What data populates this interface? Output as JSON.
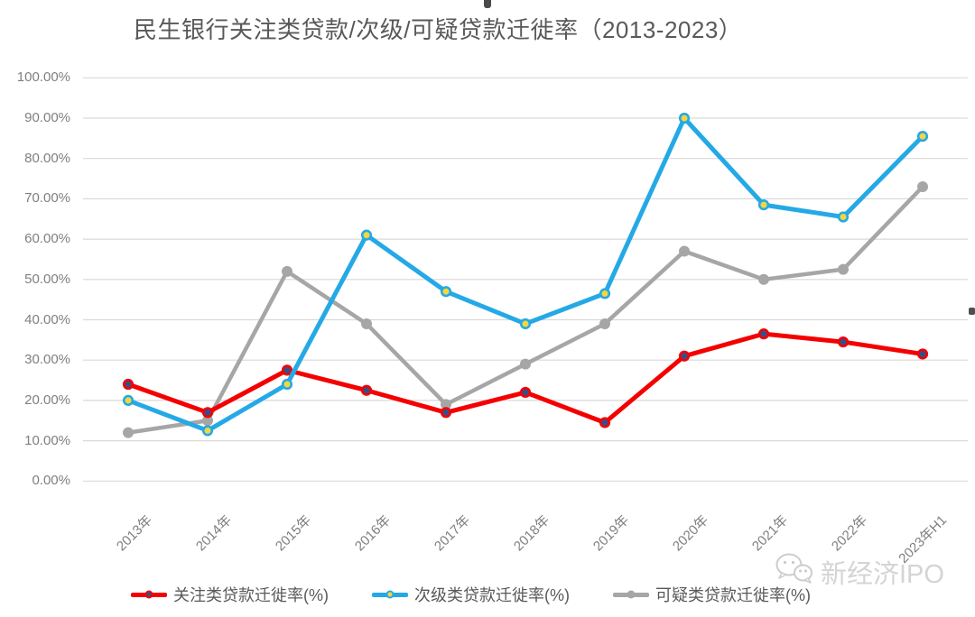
{
  "chart_data": {
    "type": "line",
    "title": "民生银行关注类贷款/次级/可疑贷款迁徙率（2013-2023）",
    "categories": [
      "2013年",
      "2014年",
      "2015年",
      "2016年",
      "2017年",
      "2018年",
      "2019年",
      "2020年",
      "2021年",
      "2022年",
      "2023年H1"
    ],
    "series": [
      {
        "name": "关注类贷款迁徙率(%)",
        "color": "#f40000",
        "marker_fill": "#34508c",
        "values": [
          24,
          17,
          27.5,
          22.5,
          17,
          22,
          14.5,
          31,
          36.5,
          34.5,
          31.5
        ]
      },
      {
        "name": "次级类贷款迁徙率(%)",
        "color": "#25a9e6",
        "marker_fill": "#f5d63d",
        "values": [
          20,
          12.5,
          24,
          61,
          47,
          39,
          46.5,
          90,
          68.5,
          65.5,
          85.5
        ]
      },
      {
        "name": "可疑类贷款迁徙率(%)",
        "color": "#a6a6a6",
        "marker_fill": "#a6a6a6",
        "values": [
          12,
          15,
          52,
          39,
          19,
          29,
          39,
          57,
          50,
          52.5,
          73
        ]
      }
    ],
    "y_ticks": [
      "100.00%",
      "90.00%",
      "80.00%",
      "70.00%",
      "60.00%",
      "50.00%",
      "40.00%",
      "30.00%",
      "20.00%",
      "10.00%",
      "0.00%"
    ],
    "ylim": [
      0,
      100
    ],
    "grid": true,
    "legend_position": "bottom"
  },
  "watermark": {
    "text": "新经济IPO"
  },
  "colors": {
    "grid": "#d9d9d9",
    "axis_text": "#7f7f7f",
    "title_text": "#595959",
    "legend_text": "#595959",
    "watermark": "#d4d4d4"
  }
}
